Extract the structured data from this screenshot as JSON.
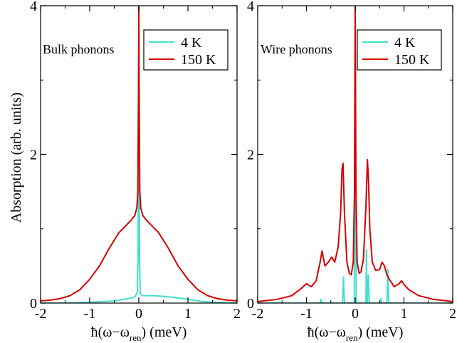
{
  "figure": {
    "ylabel": "Absorption (arb. units)"
  },
  "chart_data": [
    {
      "type": "line",
      "panel_label": "Bulk phonons",
      "xlabel_prefix": "ħ(ω−ω",
      "xlabel_sub": "ren",
      "xlabel_suffix": ") (meV)",
      "ylabel": "Absorption (arb. units)",
      "xlim": [
        -2,
        2
      ],
      "ylim": [
        0,
        4
      ],
      "xticks": [
        -2,
        -1,
        0,
        1,
        2
      ],
      "yticks": [
        0,
        2,
        4
      ],
      "legend_position": "top-right",
      "series": [
        {
          "name": "4 K",
          "color": "#40e0d0",
          "x": [
            -2,
            -1.5,
            -1,
            -0.5,
            -0.3,
            -0.15,
            -0.08,
            -0.03,
            -0.015,
            -0.005,
            0,
            0.005,
            0.015,
            0.03,
            0.08,
            0.2,
            0.3,
            0.5,
            0.8,
            1,
            1.3,
            1.6,
            2
          ],
          "y": [
            0.0,
            0.0,
            0.01,
            0.03,
            0.05,
            0.07,
            0.08,
            0.15,
            0.6,
            2.5,
            4.0,
            2.5,
            0.6,
            0.12,
            0.1,
            0.1,
            0.1,
            0.09,
            0.07,
            0.05,
            0.02,
            0.01,
            0.0
          ]
        },
        {
          "name": "150 K",
          "color": "#d40000",
          "x": [
            -2,
            -1.8,
            -1.6,
            -1.4,
            -1.2,
            -1,
            -0.8,
            -0.6,
            -0.4,
            -0.25,
            -0.15,
            -0.08,
            -0.04,
            -0.02,
            -0.005,
            0,
            0.005,
            0.02,
            0.04,
            0.08,
            0.15,
            0.25,
            0.4,
            0.6,
            0.8,
            1,
            1.2,
            1.4,
            1.6,
            1.8,
            2
          ],
          "y": [
            0.03,
            0.04,
            0.06,
            0.1,
            0.18,
            0.32,
            0.5,
            0.74,
            0.95,
            1.05,
            1.12,
            1.18,
            1.28,
            1.5,
            3.0,
            4.0,
            3.0,
            1.5,
            1.28,
            1.18,
            1.12,
            1.05,
            0.95,
            0.74,
            0.5,
            0.32,
            0.18,
            0.1,
            0.06,
            0.04,
            0.03
          ]
        }
      ]
    },
    {
      "type": "line",
      "panel_label": "Wire phonons",
      "xlabel_prefix": "ħ(ω−ω",
      "xlabel_sub": "ren",
      "xlabel_suffix": ") (meV)",
      "xlim": [
        -2,
        2
      ],
      "ylim": [
        0,
        4
      ],
      "xticks": [
        -2,
        -1,
        0,
        1,
        2
      ],
      "yticks": [
        0,
        2,
        4
      ],
      "legend_position": "top-right",
      "series": [
        {
          "name": "4 K",
          "color": "#40e0d0",
          "x": [
            -2,
            -0.72,
            -0.7,
            -0.68,
            -0.26,
            -0.25,
            -0.24,
            -0.23,
            -0.22,
            -0.02,
            -0.005,
            0,
            0.005,
            0.02,
            0.22,
            0.23,
            0.24,
            0.25,
            0.26,
            0.27,
            0.28,
            0.29,
            0.52,
            0.53,
            0.54,
            0.65,
            0.66,
            0.67,
            0.68,
            0.69,
            2
          ],
          "y": [
            0.0,
            0.0,
            0.05,
            0.0,
            0.0,
            0.18,
            0.35,
            0.15,
            0.0,
            0.0,
            2.5,
            4.0,
            2.5,
            0.0,
            0.0,
            0.72,
            0.0,
            0.0,
            0.22,
            0.38,
            0.15,
            0.0,
            0.0,
            0.06,
            0.0,
            0.0,
            0.2,
            0.45,
            0.15,
            0.0,
            0.0
          ]
        },
        {
          "name": "150 K",
          "color": "#d40000",
          "x": [
            -2,
            -1.6,
            -1.3,
            -1.1,
            -1.0,
            -0.9,
            -0.8,
            -0.72,
            -0.68,
            -0.62,
            -0.55,
            -0.48,
            -0.42,
            -0.35,
            -0.3,
            -0.27,
            -0.25,
            -0.22,
            -0.17,
            -0.12,
            -0.08,
            -0.04,
            -0.015,
            0,
            0.015,
            0.04,
            0.08,
            0.12,
            0.17,
            0.22,
            0.25,
            0.27,
            0.3,
            0.35,
            0.42,
            0.5,
            0.55,
            0.6,
            0.65,
            0.7,
            0.8,
            0.9,
            0.95,
            1.0,
            1.1,
            1.3,
            1.6,
            2
          ],
          "y": [
            0.02,
            0.05,
            0.1,
            0.2,
            0.26,
            0.22,
            0.3,
            0.55,
            0.7,
            0.5,
            0.55,
            0.62,
            0.55,
            0.75,
            1.2,
            1.8,
            1.88,
            1.2,
            0.55,
            0.4,
            0.38,
            0.55,
            1.5,
            4.0,
            1.5,
            0.55,
            0.4,
            0.42,
            0.6,
            1.3,
            1.93,
            1.7,
            1.0,
            0.55,
            0.44,
            0.45,
            0.55,
            0.5,
            0.38,
            0.32,
            0.22,
            0.26,
            0.3,
            0.25,
            0.18,
            0.1,
            0.05,
            0.02
          ]
        }
      ]
    }
  ]
}
